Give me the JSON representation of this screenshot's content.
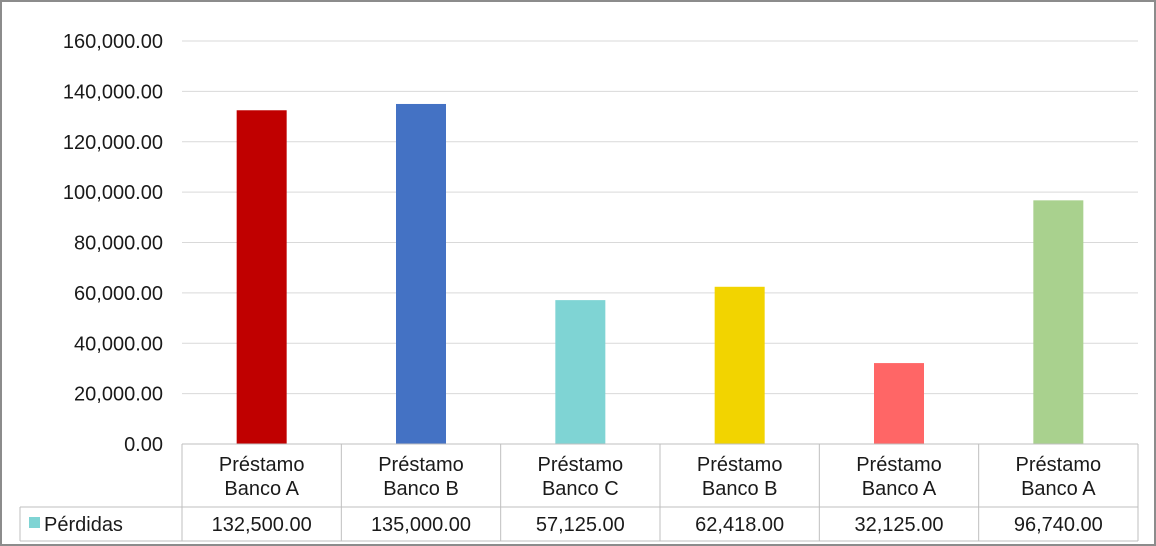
{
  "chart_data": {
    "type": "bar",
    "categories": [
      [
        "Préstamo",
        "Banco A"
      ],
      [
        "Préstamo",
        "Banco B"
      ],
      [
        "Préstamo",
        "Banco C"
      ],
      [
        "Préstamo",
        "Banco B"
      ],
      [
        "Préstamo",
        "Banco A"
      ],
      [
        "Préstamo",
        "Banco A"
      ]
    ],
    "series": [
      {
        "name": "Pérdidas",
        "values": [
          132500,
          135000,
          57125,
          62418,
          32125,
          96740
        ],
        "value_labels": [
          "132,500.00",
          "135,000.00",
          "57,125.00",
          "62,418.00",
          "32,125.00",
          "96,740.00"
        ],
        "legend_color": "#7fd4d4",
        "point_colors": [
          "#c00000",
          "#4472c4",
          "#7fd4d4",
          "#f2d400",
          "#ff6666",
          "#a9d18e"
        ]
      }
    ],
    "yticks": [
      "0.00",
      "20,000.00",
      "40,000.00",
      "60,000.00",
      "80,000.00",
      "100,000.00",
      "120,000.00",
      "140,000.00",
      "160,000.00"
    ],
    "ylim": [
      0,
      160000
    ],
    "grid": true,
    "data_table": true,
    "legend_position": "data-table"
  }
}
